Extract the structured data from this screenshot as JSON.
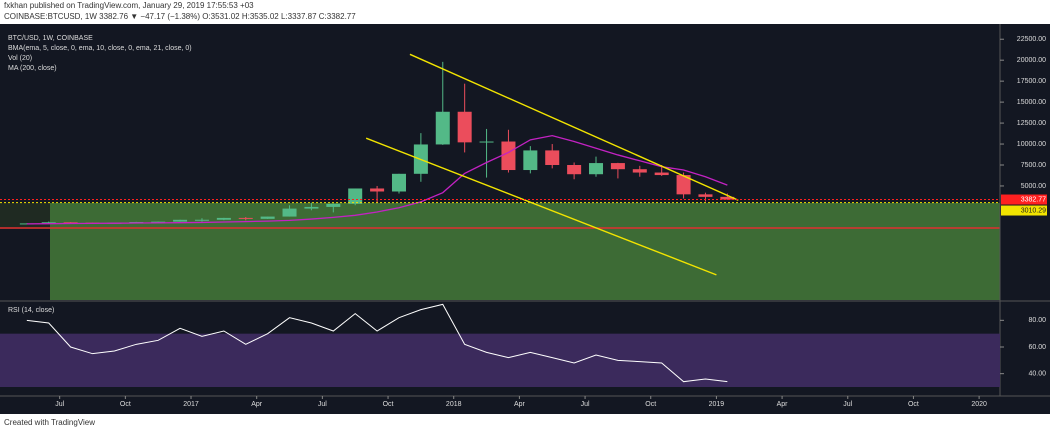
{
  "chart_data": {
    "type": "candlestick",
    "published": "fxkhan published on TradingView.com, January 29, 2019 17:55:53 +03",
    "symbol_line": "COINBASE:BTCUSD, 1W 3382.76 ▼ −47.17 (−1.38%) O:3531.02 H:3535.02 L:3337.87 C:3382.77",
    "title": "BTC/USD, 1W, COINBASE",
    "indicators": [
      "BMA(ema, 5, close, 0, ema, 10, close, 0, ema, 21, close, 0)",
      "Vol (20)"
    ],
    "footer": "Created with TradingView",
    "x": [
      "2016-05",
      "2016-06",
      "2016-07",
      "2016-08",
      "2016-09",
      "2016-10",
      "2016-11",
      "2016-12",
      "2017-01",
      "2017-02",
      "2017-03",
      "2017-04",
      "2017-05",
      "2017-06",
      "2017-07",
      "2017-08",
      "2017-09",
      "2017-10",
      "2017-11",
      "2017-12",
      "2018-01",
      "2018-02",
      "2018-03",
      "2018-04",
      "2018-05",
      "2018-06",
      "2018-07",
      "2018-08",
      "2018-09",
      "2018-10",
      "2018-11",
      "2018-12",
      "2019-01"
    ],
    "open": [
      450,
      530,
      670,
      625,
      575,
      610,
      700,
      745,
      965,
      970,
      1190,
      1080,
      1350,
      2300,
      2500,
      2870,
      4700,
      4340,
      6450,
      9950,
      13850,
      10200,
      10300,
      6900,
      9240,
      7500,
      6400,
      7730,
      7000,
      6600,
      6300,
      4000,
      3700
    ],
    "high": [
      550,
      760,
      690,
      630,
      620,
      720,
      750,
      970,
      1150,
      1200,
      1300,
      1350,
      2700,
      3000,
      2900,
      4700,
      5000,
      6450,
      11300,
      19800,
      17200,
      11800,
      11700,
      9750,
      10000,
      7800,
      8500,
      7760,
      7400,
      7500,
      6600,
      4200,
      4100
    ],
    "low": [
      440,
      520,
      600,
      530,
      590,
      600,
      690,
      740,
      750,
      920,
      900,
      1070,
      1350,
      2100,
      1850,
      2700,
      2950,
      4100,
      5500,
      9900,
      9000,
      6000,
      6600,
      6500,
      7100,
      5800,
      6100,
      5900,
      6100,
      6200,
      3500,
      3150,
      3350
    ],
    "close": [
      530,
      670,
      625,
      575,
      610,
      700,
      745,
      965,
      970,
      1190,
      1080,
      1350,
      2300,
      2500,
      2870,
      4700,
      4340,
      6450,
      9950,
      13850,
      10200,
      10300,
      6900,
      9240,
      7500,
      6400,
      7730,
      7000,
      6600,
      6300,
      4000,
      3700,
      3383
    ],
    "up_color": "#53b987",
    "down_color": "#eb4d5c",
    "series": [
      {
        "name": "MA (200, close)",
        "color": "#c322c3",
        "values": [
          480,
          500,
          520,
          540,
          560,
          580,
          600,
          620,
          650,
          700,
          750,
          810,
          900,
          1050,
          1250,
          1500,
          1900,
          2400,
          3100,
          4200,
          6500,
          7800,
          9000,
          10500,
          11000,
          10300,
          9500,
          8700,
          8000,
          7300,
          6900,
          6100,
          5100
        ]
      }
    ],
    "xlim": [
      "2016-04",
      "2020-02"
    ],
    "xticks": [
      {
        "value": "2016-07",
        "label": "Jul"
      },
      {
        "value": "2016-10",
        "label": "Oct"
      },
      {
        "value": "2017-01",
        "label": "2017"
      },
      {
        "value": "2017-04",
        "label": "Apr"
      },
      {
        "value": "2017-07",
        "label": "Jul"
      },
      {
        "value": "2017-10",
        "label": "Oct"
      },
      {
        "value": "2018-01",
        "label": "2018"
      },
      {
        "value": "2018-04",
        "label": "Apr"
      },
      {
        "value": "2018-07",
        "label": "Jul"
      },
      {
        "value": "2018-10",
        "label": "Oct"
      },
      {
        "value": "2019-01",
        "label": "2019"
      },
      {
        "value": "2019-04",
        "label": "Apr"
      },
      {
        "value": "2019-07",
        "label": "Jul"
      },
      {
        "value": "2019-10",
        "label": "Oct"
      },
      {
        "value": "2020-01",
        "label": "2020"
      }
    ],
    "ylim": [
      -8600,
      23600
    ],
    "yticks": [
      {
        "value": 5000,
        "label": "5000.00"
      },
      {
        "value": 7500,
        "label": "7500.00"
      },
      {
        "value": 10000,
        "label": "10000.00"
      },
      {
        "value": 12500,
        "label": "12500.00"
      },
      {
        "value": 15000,
        "label": "15000.00"
      },
      {
        "value": 17500,
        "label": "17500.00"
      },
      {
        "value": 20000,
        "label": "20000.00"
      },
      {
        "value": 22500,
        "label": "22500.00"
      }
    ],
    "price_labels": [
      {
        "value": 3382.77,
        "color": "#ff2020"
      },
      {
        "value": 3010.29,
        "color": "#f2e400"
      }
    ],
    "trendlines": [
      {
        "color": "#f2e400",
        "points": [
          {
            "x": "2017-11",
            "y": 20700
          },
          {
            "x": "2019-02",
            "y": 3300
          }
        ]
      },
      {
        "color": "#f2e400",
        "points": [
          {
            "x": "2017-09",
            "y": 10700
          },
          {
            "x": "2019-01",
            "y": -5600
          }
        ]
      }
    ],
    "rsi": {
      "name": "RSI (14, close)",
      "color": "#ffffff",
      "band": [
        30,
        70
      ],
      "band_color": "#3b2a5c",
      "values": [
        80,
        78,
        60,
        55,
        57,
        62,
        65,
        74,
        68,
        72,
        62,
        70,
        82,
        78,
        72,
        85,
        72,
        82,
        88,
        92,
        62,
        56,
        52,
        56,
        52,
        48,
        54,
        50,
        49,
        48,
        34,
        36,
        34
      ],
      "ylim": [
        24,
        93
      ],
      "yticks": [
        {
          "value": 40,
          "label": "40.00"
        },
        {
          "value": 60,
          "label": "60.00"
        },
        {
          "value": 80,
          "label": "80.00"
        }
      ]
    }
  }
}
